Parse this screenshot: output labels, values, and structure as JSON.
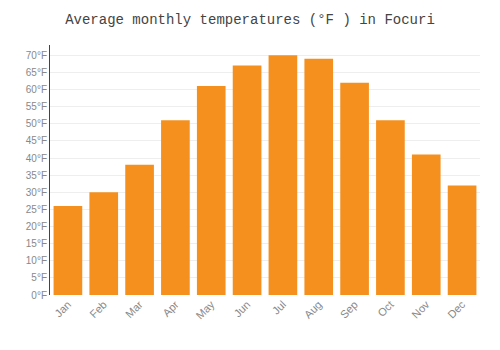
{
  "chart_data": {
    "type": "bar",
    "title": "Average monthly temperatures (°F ) in Focuri",
    "categories": [
      "Jan",
      "Feb",
      "Mar",
      "Apr",
      "May",
      "Jun",
      "Jul",
      "Aug",
      "Sep",
      "Oct",
      "Nov",
      "Dec"
    ],
    "values": [
      26,
      30,
      38,
      51,
      61,
      67,
      70,
      69,
      62,
      51,
      41,
      32
    ],
    "color": "#F5901E",
    "ylim": [
      0,
      73
    ],
    "yticks": [
      {
        "value": 0,
        "label": "0°F"
      },
      {
        "value": 5,
        "label": "5°F"
      },
      {
        "value": 10,
        "label": "10°F"
      },
      {
        "value": 15,
        "label": "15°F"
      },
      {
        "value": 20,
        "label": "20°F"
      },
      {
        "value": 25,
        "label": "25°F"
      },
      {
        "value": 30,
        "label": "30°F"
      },
      {
        "value": 35,
        "label": "35°F"
      },
      {
        "value": 40,
        "label": "40°F"
      },
      {
        "value": 45,
        "label": "45°F"
      },
      {
        "value": 50,
        "label": "50°F"
      },
      {
        "value": 55,
        "label": "55°F"
      },
      {
        "value": 60,
        "label": "60°F"
      },
      {
        "value": 65,
        "label": "65°F"
      },
      {
        "value": 70,
        "label": "70°F"
      }
    ],
    "grid": true
  }
}
